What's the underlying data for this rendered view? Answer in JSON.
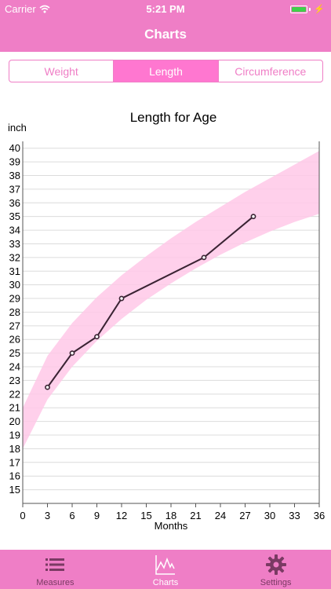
{
  "status": {
    "carrier": "Carrier",
    "time": "5:21 PM",
    "battery_level": 1.0
  },
  "nav": {
    "title": "Charts"
  },
  "segments": [
    {
      "label": "Weight",
      "selected": false
    },
    {
      "label": "Length",
      "selected": true
    },
    {
      "label": "Circumference",
      "selected": false
    }
  ],
  "tabs": [
    {
      "label": "Measures",
      "icon": "list-icon",
      "active": false
    },
    {
      "label": "Charts",
      "icon": "chart-icon",
      "active": true
    },
    {
      "label": "Settings",
      "icon": "gear-icon",
      "active": false
    }
  ],
  "colors": {
    "accent": "#ef7ec6",
    "band": "#ffc8e8",
    "line": "#3a2333"
  },
  "chart_data": {
    "type": "line",
    "title": "Length for Age",
    "ylabel": "inch",
    "xlabel": "Months",
    "xlim": [
      0,
      36
    ],
    "ylim": [
      14,
      40.5
    ],
    "xticks": [
      0,
      3,
      6,
      9,
      12,
      15,
      18,
      21,
      24,
      27,
      30,
      33,
      36
    ],
    "yticks": [
      15,
      16,
      17,
      18,
      19,
      20,
      21,
      22,
      23,
      24,
      25,
      26,
      27,
      28,
      29,
      30,
      31,
      32,
      33,
      34,
      35,
      36,
      37,
      38,
      39,
      40
    ],
    "grid": true,
    "band": {
      "x": [
        0,
        3,
        6,
        9,
        12,
        15,
        18,
        21,
        24,
        27,
        30,
        33,
        36
      ],
      "upper": [
        21.0,
        24.8,
        27.2,
        29.1,
        30.7,
        32.1,
        33.4,
        34.6,
        35.7,
        36.8,
        37.8,
        38.8,
        39.8
      ],
      "lower": [
        18.0,
        21.6,
        24.0,
        25.9,
        27.5,
        28.9,
        30.1,
        31.2,
        32.2,
        33.1,
        33.9,
        34.6,
        35.2
      ]
    },
    "series": [
      {
        "x": [
          3,
          6,
          9,
          12,
          22,
          28
        ],
        "values": [
          22.5,
          25.0,
          26.2,
          29.0,
          32.0,
          35.0
        ]
      }
    ]
  }
}
